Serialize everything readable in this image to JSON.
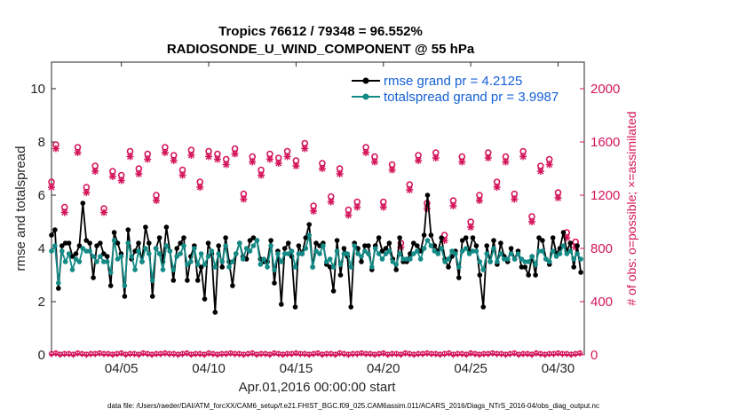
{
  "chart_data": {
    "type": "line",
    "title_line1": "Tropics 76612 / 79348 = 96.552%",
    "title_line2": "RADIOSONDE_U_WIND_COMPONENT @ 55 hPa",
    "xlabel": "Apr.01,2016 00:00:00 start",
    "ylabel": "rmse and totalspread",
    "ylabel_right": "# of obs: o=possible; ×=assimilated",
    "footer": "data file: /Users/raeder/DAI/ATM_forcXX/CAM6_setup/f.e21.FHIST_BGC.f09_025.CAM6assim.011/ACARS_2016/Diags_NTrS_2016-04/obs_diag_output.nc",
    "xlim": [
      1,
      31.5
    ],
    "ylim": [
      0,
      11
    ],
    "ylim_right": [
      0,
      2200
    ],
    "x_ticks": [
      5,
      10,
      15,
      20,
      25,
      30
    ],
    "x_tick_labels": [
      "04/05",
      "04/10",
      "04/15",
      "04/20",
      "04/25",
      "04/30"
    ],
    "y_ticks": [
      0,
      2,
      4,
      6,
      8,
      10
    ],
    "y_tick_labels": [
      "0",
      "2",
      "4",
      "6",
      "8",
      "10"
    ],
    "y_ticks_right": [
      0,
      400,
      800,
      1200,
      1600,
      2000
    ],
    "y_tick_labels_right": [
      "0",
      "400",
      "800",
      "1200",
      "1600",
      "2000"
    ],
    "colors": {
      "rmse": "#000000",
      "spread": "#138a85",
      "obs": "#d4145a",
      "legend_text": "#1560d6"
    },
    "series": [
      {
        "name": "rmse grand pr = 4.2125",
        "values": [
          4.5,
          4.7,
          2.5,
          4.1,
          4.2,
          4.2,
          3.7,
          3.8,
          4.1,
          5.7,
          4.3,
          4.2,
          2.9,
          4.1,
          4.2,
          3.8,
          3.7,
          2.6,
          4.6,
          4.2,
          3.8,
          2.2,
          4.7,
          3.6,
          3.9,
          4.2,
          3.5,
          4.8,
          4.2,
          2.2,
          4.0,
          4.4,
          3.5,
          4.8,
          3.9,
          2.8,
          4.0,
          4.2,
          4.4,
          2.8,
          3.7,
          4.1,
          2.8,
          3.3,
          2.1,
          4.2,
          3.8,
          1.6,
          4.1,
          3.3,
          4.4,
          3.5,
          2.6,
          3.8,
          4.2,
          3.7,
          3.6,
          4.3,
          4.4,
          4.3,
          3.6,
          3.5,
          3.5,
          4.3,
          2.7,
          3.9,
          1.9,
          4.0,
          4.2,
          3.7,
          1.8,
          4.1,
          3.8,
          4.4,
          4.9,
          3.3,
          4.2,
          4.1,
          4.2,
          3.4,
          3.3,
          2.4,
          4.3,
          3.0,
          4.0,
          3.7,
          1.8,
          4.2,
          4.0,
          3.5,
          4.1,
          4.1,
          3.2,
          4.1,
          4.4,
          3.9,
          4.0,
          4.2,
          3.6,
          3.2,
          4.4,
          3.5,
          3.5,
          3.8,
          4.2,
          4.1,
          3.9,
          4.5,
          6.0,
          4.5,
          4.1,
          3.9,
          4.4,
          3.6,
          3.3,
          3.7,
          3.9,
          2.9,
          4.3,
          4.4,
          3.9,
          4.4,
          4.1,
          3.0,
          1.8,
          4.1,
          3.5,
          4.3,
          3.4,
          4.2,
          3.7,
          3.5,
          4.0,
          3.6,
          3.9,
          3.3,
          3.3,
          3.0,
          3.7,
          3.0,
          4.4,
          4.3,
          3.6,
          3.4,
          4.4,
          3.8,
          4.0,
          4.6,
          3.9,
          4.2,
          3.3,
          4.1,
          3.1
        ],
        "color_key": "rmse"
      },
      {
        "name": "totalspread grand pr = 3.9987",
        "values": [
          3.9,
          4.1,
          2.7,
          3.9,
          3.5,
          3.8,
          3.2,
          3.6,
          3.5,
          4.0,
          3.9,
          3.9,
          3.7,
          3.5,
          3.7,
          3.5,
          3.5,
          3.1,
          4.3,
          3.6,
          3.7,
          2.6,
          4.2,
          3.7,
          3.2,
          3.9,
          3.5,
          4.0,
          3.8,
          2.8,
          4.0,
          3.8,
          3.2,
          4.1,
          3.9,
          3.2,
          3.7,
          3.8,
          4.1,
          3.4,
          3.5,
          4.0,
          3.4,
          3.8,
          3.4,
          3.7,
          3.9,
          3.3,
          3.8,
          3.5,
          4.1,
          3.3,
          3.5,
          3.8,
          4.2,
          3.6,
          4.0,
          3.9,
          4.1,
          4.3,
          3.4,
          3.6,
          3.3,
          4.1,
          3.2,
          3.8,
          3.5,
          3.8,
          3.8,
          3.9,
          3.3,
          3.8,
          3.8,
          4.0,
          4.5,
          3.3,
          3.9,
          3.8,
          4.1,
          3.5,
          3.6,
          3.3,
          3.9,
          3.4,
          3.8,
          3.8,
          3.3,
          4.1,
          3.8,
          3.7,
          3.9,
          3.8,
          3.3,
          4.0,
          3.8,
          3.6,
          3.8,
          3.9,
          3.5,
          3.4,
          3.8,
          3.6,
          3.6,
          3.6,
          3.8,
          3.9,
          3.6,
          4.0,
          4.3,
          4.1,
          3.9,
          3.8,
          4.0,
          3.5,
          3.6,
          3.9,
          3.8,
          3.3,
          3.9,
          4.0,
          3.8,
          3.9,
          3.9,
          3.5,
          3.2,
          3.8,
          3.5,
          4.0,
          3.5,
          3.8,
          3.6,
          3.6,
          3.8,
          3.6,
          3.8,
          3.6,
          3.5,
          3.5,
          3.7,
          3.4,
          3.9,
          3.9,
          3.6,
          3.5,
          3.9,
          3.7,
          3.8,
          4.1,
          3.8,
          3.9,
          3.6,
          3.8,
          3.6
        ],
        "color_key": "spread"
      }
    ],
    "obs_possible_days": [
      1.0,
      1.25,
      1.75,
      2.5,
      3.0,
      3.5,
      4.0,
      4.5,
      5.0,
      5.5,
      6.0,
      6.5,
      7.0,
      7.5,
      8.0,
      8.5,
      9.0,
      9.5,
      10.0,
      10.5,
      11.0,
      11.5,
      12.0,
      12.5,
      13.0,
      13.5,
      14.0,
      14.5,
      15.0,
      15.5,
      16.0,
      16.5,
      17.0,
      17.5,
      18.0,
      18.5,
      19.0,
      19.5,
      20.0,
      20.5,
      21.0,
      21.5,
      22.0,
      22.5,
      23.0,
      23.5,
      24.0,
      24.5,
      25.0,
      25.5,
      26.0,
      26.5,
      27.0,
      27.5,
      28.0,
      28.5,
      29.0,
      29.5,
      30.0,
      30.5,
      31.0
    ],
    "obs_possible_values": [
      1300,
      1580,
      1110,
      1560,
      1260,
      1420,
      1100,
      1380,
      1350,
      1530,
      1400,
      1510,
      1200,
      1560,
      1500,
      1390,
      1540,
      1300,
      1530,
      1510,
      1470,
      1550,
      1210,
      1490,
      1390,
      1510,
      1480,
      1530,
      1460,
      1590,
      1120,
      1440,
      1190,
      1400,
      1090,
      1150,
      1560,
      1490,
      1150,
      1430,
      840,
      1280,
      1500,
      1140,
      1520,
      900,
      1160,
      1490,
      1000,
      1200,
      1520,
      1300,
      1490,
      1210,
      1530,
      1040,
      1420,
      1470,
      1220,
      920,
      850
    ],
    "obs_assim_values": [
      1260,
      1550,
      1070,
      1520,
      1220,
      1380,
      1070,
      1340,
      1310,
      1490,
      1360,
      1470,
      1160,
      1520,
      1460,
      1350,
      1500,
      1260,
      1490,
      1470,
      1430,
      1510,
      1170,
      1450,
      1350,
      1470,
      1440,
      1490,
      1420,
      1550,
      1080,
      1400,
      1150,
      1360,
      1050,
      1110,
      1520,
      1450,
      1110,
      1390,
      810,
      1240,
      1460,
      1100,
      1480,
      860,
      1120,
      1450,
      960,
      1160,
      1480,
      1260,
      1450,
      1170,
      1490,
      1000,
      1380,
      1430,
      1180,
      880,
      810
    ]
  }
}
